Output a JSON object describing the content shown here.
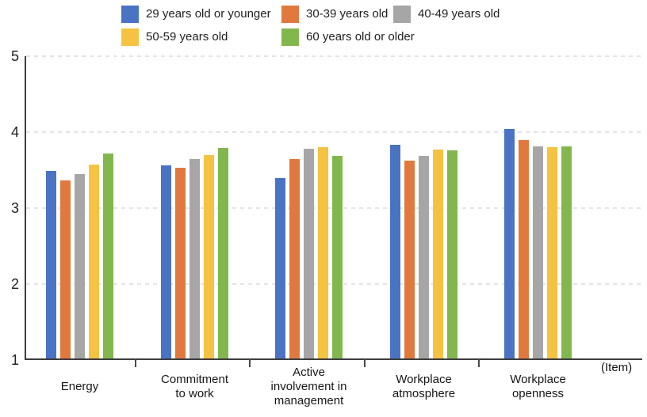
{
  "chart_data": {
    "type": "bar",
    "title": "",
    "xlabel": "",
    "ylabel": "",
    "xlabel_unit": "(Item)",
    "ylim": [
      1,
      5
    ],
    "yticks": [
      1,
      2,
      3,
      4,
      5
    ],
    "grid": "horizontal dashed",
    "legend_position": "top",
    "categories": [
      "Energy",
      "Commitment to work",
      "Active involvement in management",
      "Workplace atmosphere",
      "Workplace openness"
    ],
    "category_label_lines": [
      [
        "Energy"
      ],
      [
        "Commitment",
        "to work"
      ],
      [
        "Active",
        "involvement in",
        "management"
      ],
      [
        "Workplace",
        "atmosphere"
      ],
      [
        "Workplace",
        "openness"
      ]
    ],
    "series": [
      {
        "name": "29 years old or younger",
        "color": "#4a73c4",
        "values": [
          3.47,
          3.54,
          3.37,
          3.81,
          4.02
        ]
      },
      {
        "name": "30-39 years old",
        "color": "#e1793e",
        "values": [
          3.34,
          3.51,
          3.62,
          3.6,
          3.87
        ]
      },
      {
        "name": "40-49 years old",
        "color": "#a6a6a6",
        "values": [
          3.43,
          3.62,
          3.76,
          3.67,
          3.79
        ]
      },
      {
        "name": "50-59 years old",
        "color": "#f5c242",
        "values": [
          3.55,
          3.68,
          3.78,
          3.75,
          3.78
        ]
      },
      {
        "name": "60 years old or older",
        "color": "#82b74e",
        "values": [
          3.7,
          3.77,
          3.67,
          3.74,
          3.79
        ]
      }
    ]
  }
}
